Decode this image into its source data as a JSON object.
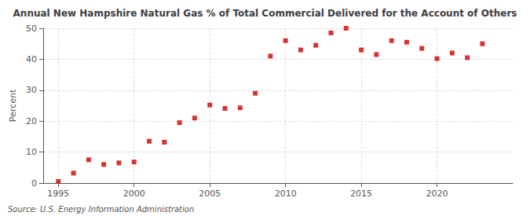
{
  "chart_data": {
    "type": "scatter",
    "title": "Annual New Hampshire Natural Gas % of Total Commercial Delivered for the Account of Others",
    "ylabel": "Percent",
    "annotations": [
      "Source: U.S. Energy Information Administration"
    ],
    "x": [
      1995,
      1996,
      1997,
      1998,
      1999,
      2000,
      2001,
      2002,
      2003,
      2004,
      2005,
      2006,
      2007,
      2008,
      2009,
      2010,
      2011,
      2012,
      2013,
      2014,
      2015,
      2016,
      2017,
      2018,
      2019,
      2020,
      2021,
      2022,
      2023
    ],
    "values": [
      0.5,
      3.2,
      7.5,
      6.0,
      6.5,
      6.8,
      13.5,
      13.2,
      19.5,
      21.0,
      25.2,
      24.1,
      24.3,
      29.0,
      41.0,
      46.0,
      43.0,
      44.5,
      48.5,
      50.0,
      43.0,
      41.5,
      46.0,
      45.5,
      43.5,
      40.2,
      42.0,
      40.5,
      45.0
    ],
    "color": "#cc0000",
    "marker": "square",
    "xlim": [
      1994.0,
      2025.0
    ],
    "ylim": [
      0,
      50
    ],
    "xticks": [
      1995,
      2000,
      2005,
      2010,
      2015,
      2020
    ],
    "yticks": [
      0,
      10,
      20,
      30,
      40,
      50
    ],
    "grid": true
  }
}
